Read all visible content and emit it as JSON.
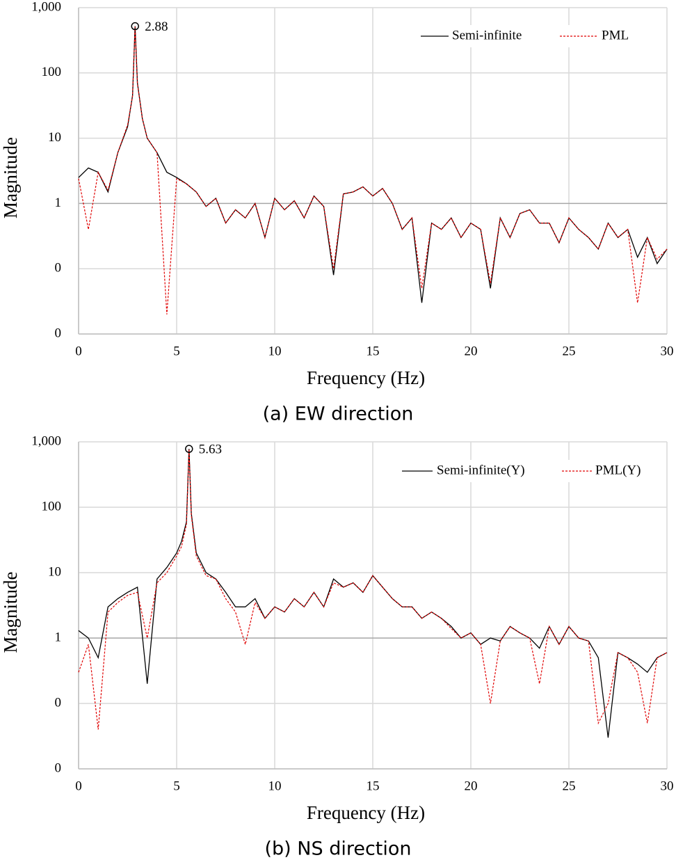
{
  "chart_data": [
    {
      "type": "line",
      "log_y": true,
      "grid": true,
      "legend": "upper right",
      "caption": "(a) EW direction",
      "xlabel": "Frequency (Hz)",
      "ylabel": "Magnitude",
      "xlim": [
        0,
        30
      ],
      "xticks": [
        0,
        5,
        10,
        15,
        20,
        25,
        30
      ],
      "ylim": [
        0.01,
        1000
      ],
      "yticks": [
        {
          "value": 0.01,
          "label": "0"
        },
        {
          "value": 0.1,
          "label": "0"
        },
        1,
        10,
        100,
        {
          "value": 1000,
          "label": "1,000"
        }
      ],
      "peak": {
        "x": 2.88,
        "y": 520
      },
      "x": [
        0,
        0.5,
        1,
        1.5,
        2,
        2.5,
        2.75,
        2.88,
        3,
        3.25,
        3.5,
        4,
        4.5,
        5,
        5.5,
        6,
        6.5,
        7,
        7.5,
        8,
        8.5,
        9,
        9.5,
        10,
        10.5,
        11,
        11.5,
        12,
        12.5,
        13,
        13.5,
        14,
        14.5,
        15,
        15.5,
        16,
        16.5,
        17,
        17.5,
        18,
        18.5,
        19,
        19.5,
        20,
        20.5,
        21,
        21.5,
        22,
        22.5,
        23,
        23.5,
        24,
        24.5,
        25,
        25.5,
        26,
        26.5,
        27,
        27.5,
        28,
        28.5,
        29,
        29.5,
        30
      ],
      "series": [
        {
          "name": "Semi-infinite",
          "color": "#000000",
          "dashed": false,
          "values": [
            2.5,
            3.5,
            3,
            1.5,
            6,
            15,
            45,
            520,
            70,
            20,
            10,
            6,
            3,
            2.5,
            2,
            1.5,
            0.9,
            1.2,
            0.5,
            0.8,
            0.6,
            1,
            0.3,
            1.2,
            0.8,
            1.1,
            0.6,
            1.3,
            0.9,
            0.08,
            1.4,
            1.5,
            1.8,
            1.3,
            1.7,
            1,
            0.4,
            0.6,
            0.03,
            0.5,
            0.4,
            0.6,
            0.3,
            0.5,
            0.4,
            0.05,
            0.6,
            0.3,
            0.7,
            0.8,
            0.5,
            0.5,
            0.25,
            0.6,
            0.4,
            0.3,
            0.2,
            0.5,
            0.3,
            0.4,
            0.15,
            0.3,
            0.12,
            0.2
          ]
        },
        {
          "name": "PML",
          "color": "#e00000",
          "dashed": true,
          "values": [
            2.4,
            0.4,
            3,
            1.6,
            6,
            16,
            44,
            510,
            68,
            20,
            10,
            6,
            0.02,
            2.4,
            2,
            1.5,
            0.9,
            1.2,
            0.5,
            0.8,
            0.6,
            1,
            0.3,
            1.2,
            0.8,
            1.1,
            0.6,
            1.3,
            0.9,
            0.1,
            1.4,
            1.5,
            1.8,
            1.3,
            1.7,
            1,
            0.4,
            0.6,
            0.05,
            0.5,
            0.4,
            0.6,
            0.3,
            0.5,
            0.4,
            0.06,
            0.6,
            0.3,
            0.7,
            0.8,
            0.5,
            0.5,
            0.25,
            0.6,
            0.4,
            0.3,
            0.2,
            0.5,
            0.3,
            0.4,
            0.03,
            0.3,
            0.14,
            0.2
          ]
        }
      ]
    },
    {
      "type": "line",
      "log_y": true,
      "grid": true,
      "legend": "upper right",
      "caption": "(b) NS direction",
      "xlabel": "Frequency (Hz)",
      "ylabel": "Magnitude",
      "xlim": [
        0,
        30
      ],
      "xticks": [
        0,
        5,
        10,
        15,
        20,
        25,
        30
      ],
      "ylim": [
        0.01,
        1000
      ],
      "yticks": [
        {
          "value": 0.01,
          "label": "0"
        },
        {
          "value": 0.1,
          "label": "0"
        },
        1,
        10,
        100,
        {
          "value": 1000,
          "label": "1,000"
        }
      ],
      "peak": {
        "x": 5.63,
        "y": 780
      },
      "x": [
        0,
        0.5,
        1,
        1.5,
        2,
        2.5,
        3,
        3.5,
        4,
        4.5,
        5,
        5.25,
        5.5,
        5.63,
        5.75,
        6,
        6.5,
        7,
        7.5,
        8,
        8.5,
        9,
        9.5,
        10,
        10.5,
        11,
        11.5,
        12,
        12.5,
        13,
        13.5,
        14,
        14.5,
        15,
        15.5,
        16,
        16.5,
        17,
        17.5,
        18,
        18.5,
        19,
        19.5,
        20,
        20.5,
        21,
        21.5,
        22,
        22.5,
        23,
        23.5,
        24,
        24.5,
        25,
        25.5,
        26,
        26.5,
        27,
        27.5,
        28,
        28.5,
        29,
        29.5,
        30
      ],
      "series": [
        {
          "name": "Semi-infinite(Y)",
          "color": "#000000",
          "dashed": false,
          "values": [
            1.3,
            1,
            0.5,
            3,
            4,
            5,
            6,
            0.2,
            8,
            12,
            20,
            30,
            60,
            780,
            80,
            20,
            10,
            8,
            5,
            3,
            3,
            4,
            2,
            3,
            2.5,
            4,
            3,
            5,
            3,
            8,
            6,
            7,
            5,
            9,
            6,
            4,
            3,
            3,
            2,
            2.5,
            2,
            1.5,
            1,
            1.2,
            0.8,
            1,
            0.9,
            1.5,
            1.2,
            1,
            0.7,
            1.5,
            0.8,
            1.5,
            1,
            0.9,
            0.5,
            0.03,
            0.6,
            0.5,
            0.4,
            0.3,
            0.5,
            0.6
          ]
        },
        {
          "name": "PML(Y)",
          "color": "#e00000",
          "dashed": true,
          "values": [
            0.3,
            0.8,
            0.04,
            2.5,
            3.5,
            4.5,
            5,
            1,
            7,
            10,
            18,
            25,
            55,
            770,
            75,
            18,
            9,
            8,
            4,
            2.5,
            0.8,
            3.5,
            2,
            3,
            2.5,
            4,
            3,
            5,
            3,
            7,
            6,
            7,
            5,
            9,
            6,
            4,
            3,
            3,
            2,
            2.5,
            2,
            1.4,
            1,
            1.2,
            0.8,
            0.1,
            0.9,
            1.5,
            1.2,
            1,
            0.2,
            1.5,
            0.8,
            1.5,
            1,
            0.9,
            0.05,
            0.1,
            0.6,
            0.5,
            0.3,
            0.05,
            0.5,
            0.6
          ]
        }
      ]
    }
  ]
}
